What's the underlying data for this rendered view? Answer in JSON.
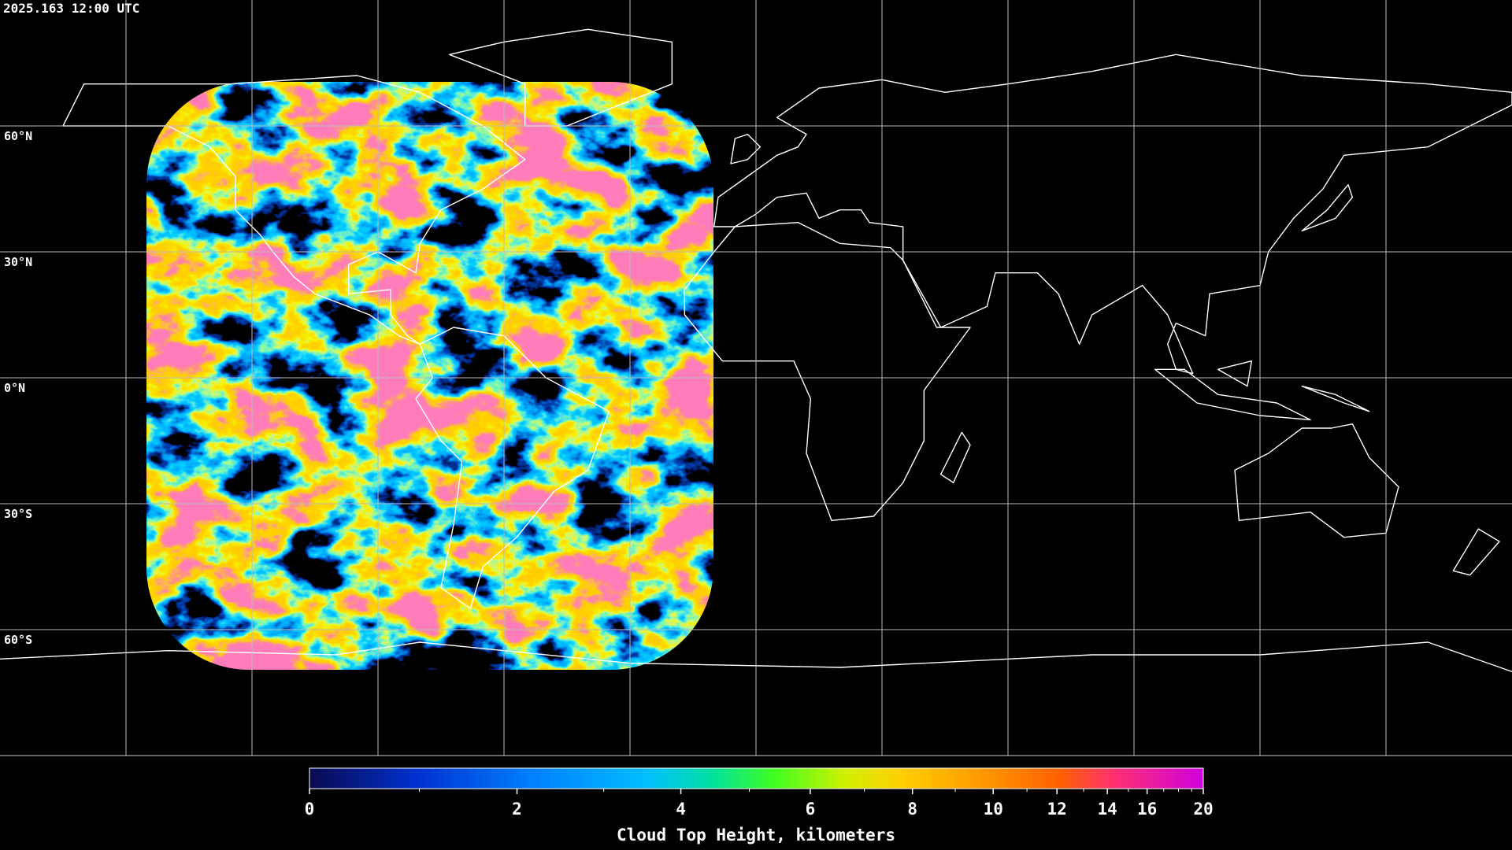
{
  "timestamp": "2025.163 12:00 UTC",
  "latitude_labels": [
    {
      "value": 60,
      "label": "60°N"
    },
    {
      "value": 30,
      "label": "30°N"
    },
    {
      "value": 0,
      "label": "0°N"
    },
    {
      "value": -30,
      "label": "30°S"
    },
    {
      "value": -60,
      "label": "60°S"
    }
  ],
  "colorbar": {
    "title": "Cloud Top Height, kilometers",
    "range": [
      0,
      20
    ],
    "ticks": [
      0,
      2,
      4,
      6,
      8,
      10,
      12,
      14,
      16,
      20
    ],
    "minor_ticks": [
      1,
      3,
      5,
      7,
      9,
      11,
      13,
      15,
      17,
      18,
      19
    ]
  }
}
